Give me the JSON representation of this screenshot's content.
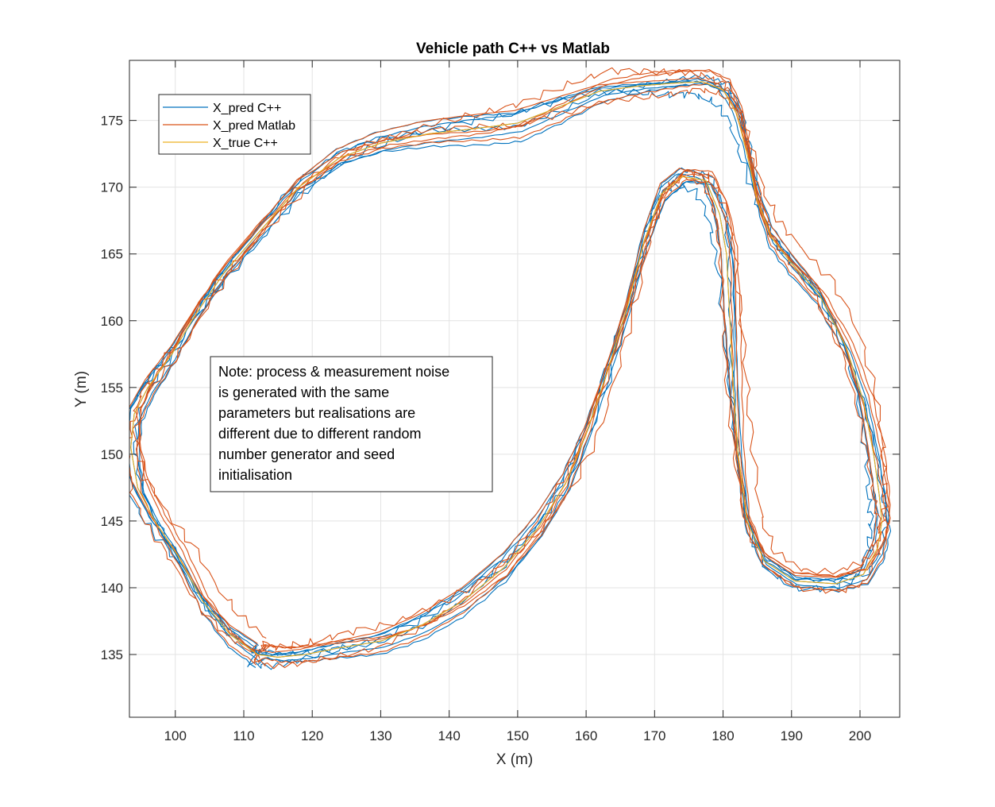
{
  "chart_data": {
    "type": "line",
    "title": "Vehicle path C++ vs Matlab",
    "xlabel": "X (m)",
    "ylabel": "Y (m)",
    "xlim": [
      93.3,
      205.8
    ],
    "ylim": [
      130.3,
      179.5
    ],
    "x_ticks": [
      100,
      110,
      120,
      130,
      140,
      150,
      160,
      170,
      180,
      190,
      200
    ],
    "y_ticks": [
      135,
      140,
      145,
      150,
      155,
      160,
      165,
      170,
      175
    ],
    "grid": true,
    "legend_position": "top-left",
    "colors": {
      "cpp": "#0072BD",
      "matlab": "#D95319",
      "true": "#EDB120"
    },
    "note": [
      "Note: process & measurement noise",
      "is generated with the same",
      "parameters but realisations are",
      "different due to different random",
      "number generator and seed",
      "initialisation"
    ],
    "track": {
      "x": [
        112,
        108,
        104,
        100.5,
        97,
        94.5,
        93.5,
        94,
        96,
        99.5,
        103,
        107,
        112,
        118,
        124,
        130,
        137,
        144,
        150,
        156,
        162,
        168,
        173,
        177,
        180,
        182,
        183.5,
        185,
        187,
        190,
        194,
        198,
        200.5,
        202,
        202.8,
        203.2,
        202.6,
        200.5,
        196.5,
        190.5,
        186,
        183.5,
        182.2,
        181.5,
        181,
        180.5,
        179.5,
        177.5,
        174,
        171,
        168.5,
        166,
        163,
        160,
        157,
        153,
        148,
        142,
        136,
        130,
        124,
        119,
        115,
        112
      ],
      "y": [
        135,
        136.5,
        139,
        142.3,
        145,
        147.5,
        150.5,
        153,
        155,
        157.5,
        160.5,
        163.5,
        166.5,
        170,
        172.2,
        173.3,
        174,
        174.4,
        174.8,
        176,
        177.2,
        177.6,
        177.8,
        177.9,
        177.3,
        175.5,
        172.5,
        169,
        166.3,
        164.3,
        162,
        158,
        154,
        150,
        147,
        145,
        143,
        141,
        140.3,
        140.5,
        142,
        145,
        150,
        155,
        160,
        165,
        168,
        170.5,
        170.8,
        169.5,
        166,
        161,
        156,
        151.5,
        147.8,
        144.5,
        141.5,
        139,
        137.2,
        136,
        135.5,
        135,
        134.8,
        135
      ]
    },
    "series": [
      {
        "name": "X_pred C++",
        "perturb": [
          [
            0,
            0,
            0,
            0
          ],
          [
            -0.5,
            0.3,
            0.4,
            0.4
          ],
          [
            0.6,
            -0.4,
            0.3,
            0.2
          ],
          [
            -0.3,
            0.5,
            0.6,
            0.4
          ],
          [
            0.4,
            -0.6,
            0.8,
            0.6
          ],
          [
            0.2,
            0.2,
            0.5,
            1.6
          ],
          [
            -0.6,
            -0.3,
            1.0,
            2.2
          ]
        ]
      },
      {
        "name": "X_pred Matlab",
        "perturb": [
          [
            0.5,
            0.4,
            0.7,
            0.3
          ],
          [
            -0.4,
            0.6,
            0.5,
            0.1
          ],
          [
            0.7,
            0.3,
            0.9,
            0.5
          ],
          [
            0.3,
            -0.5,
            0.6,
            0.6
          ],
          [
            1.2,
            0.8,
            0.9,
            2.3
          ],
          [
            -0.2,
            -0.3,
            0.8,
            1.8
          ]
        ]
      },
      {
        "name": "X_true C++",
        "perturb": [
          [
            0,
            0,
            0,
            0
          ]
        ]
      }
    ]
  }
}
